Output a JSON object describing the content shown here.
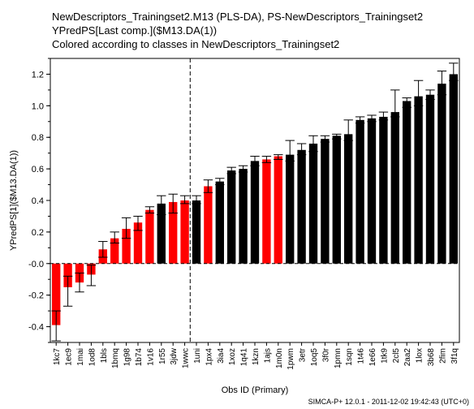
{
  "titles": [
    "NewDescriptors_Trainingset2.M13 (PLS-DA), PS-NewDescriptors_Trainingset2",
    "YPredPS[Last comp.]($M13.DA(1))",
    "Colored according to classes in NewDescriptors_Trainingset2"
  ],
  "footer": "SIMCA-P+ 12.0.1 - 2011-12-02 19:42:43 (UTC+0)",
  "colors": {
    "class1": "#ff0000",
    "class2": "#000000",
    "axis": "#000000",
    "divider": "#000000"
  },
  "chart_data": {
    "type": "bar",
    "title": "YPredPS[Last comp.]($M13.DA(1))",
    "xlabel": "Obs ID (Primary)",
    "ylabel": "YPredPS[1]($M13.DA(1))",
    "ylim": [
      -0.5,
      1.3
    ],
    "yticks": [
      -0.4,
      -0.2,
      0.0,
      0.2,
      0.4,
      0.6,
      0.8,
      1.0,
      1.2
    ],
    "ytick_labels": [
      "-0.4",
      "-0.2",
      "-0.0",
      "0.2",
      "0.4",
      "0.6",
      "0.8",
      "1.0",
      "1.2"
    ],
    "grid": false,
    "divider_after_index": 12,
    "categories": [
      "1kc7",
      "1ec9",
      "1mai",
      "1od8",
      "1bls",
      "1bmq",
      "1g98",
      "1b74",
      "1v16",
      "1r55",
      "3jdw",
      "1wwc",
      "1uni",
      "1px4",
      "3ia4",
      "1xoz",
      "1q41",
      "1kzn",
      "1ajs",
      "1m0n",
      "1pwm",
      "3etr",
      "1oq5",
      "3f0r",
      "1pmn",
      "1sqn",
      "1t46",
      "1e66",
      "1tk9",
      "2cl5",
      "2aa2",
      "1lox",
      "3b68",
      "2fim",
      "3f1q"
    ],
    "values": [
      -0.39,
      -0.15,
      -0.12,
      -0.07,
      0.09,
      0.16,
      0.22,
      0.26,
      0.34,
      0.38,
      0.39,
      0.4,
      0.4,
      0.49,
      0.52,
      0.59,
      0.6,
      0.65,
      0.66,
      0.68,
      0.69,
      0.72,
      0.76,
      0.79,
      0.81,
      0.82,
      0.91,
      0.92,
      0.93,
      0.96,
      1.03,
      1.06,
      1.07,
      1.14,
      1.2
    ],
    "error_low": [
      -0.49,
      -0.27,
      -0.18,
      -0.14,
      0.04,
      0.13,
      0.16,
      0.21,
      0.32,
      0.31,
      0.32,
      0.38,
      0.38,
      0.45,
      0.5,
      0.57,
      0.58,
      0.62,
      0.64,
      0.66,
      0.65,
      0.69,
      0.71,
      0.77,
      0.79,
      0.78,
      0.89,
      0.9,
      0.91,
      0.93,
      0.99,
      1.0,
      1.04,
      1.07,
      1.16
    ],
    "error_high": [
      -0.3,
      -0.08,
      -0.06,
      -0.01,
      0.14,
      0.2,
      0.29,
      0.3,
      0.36,
      0.43,
      0.44,
      0.43,
      0.43,
      0.53,
      0.54,
      0.61,
      0.62,
      0.68,
      0.68,
      0.69,
      0.78,
      0.76,
      0.81,
      0.81,
      0.82,
      0.91,
      0.93,
      0.94,
      0.96,
      1.1,
      1.05,
      1.16,
      1.1,
      1.22,
      1.27
    ],
    "classes": [
      1,
      1,
      1,
      1,
      1,
      1,
      1,
      1,
      1,
      2,
      1,
      1,
      2,
      1,
      2,
      2,
      2,
      2,
      1,
      1,
      2,
      2,
      2,
      2,
      2,
      2,
      2,
      2,
      2,
      2,
      2,
      2,
      2,
      2,
      2
    ]
  }
}
